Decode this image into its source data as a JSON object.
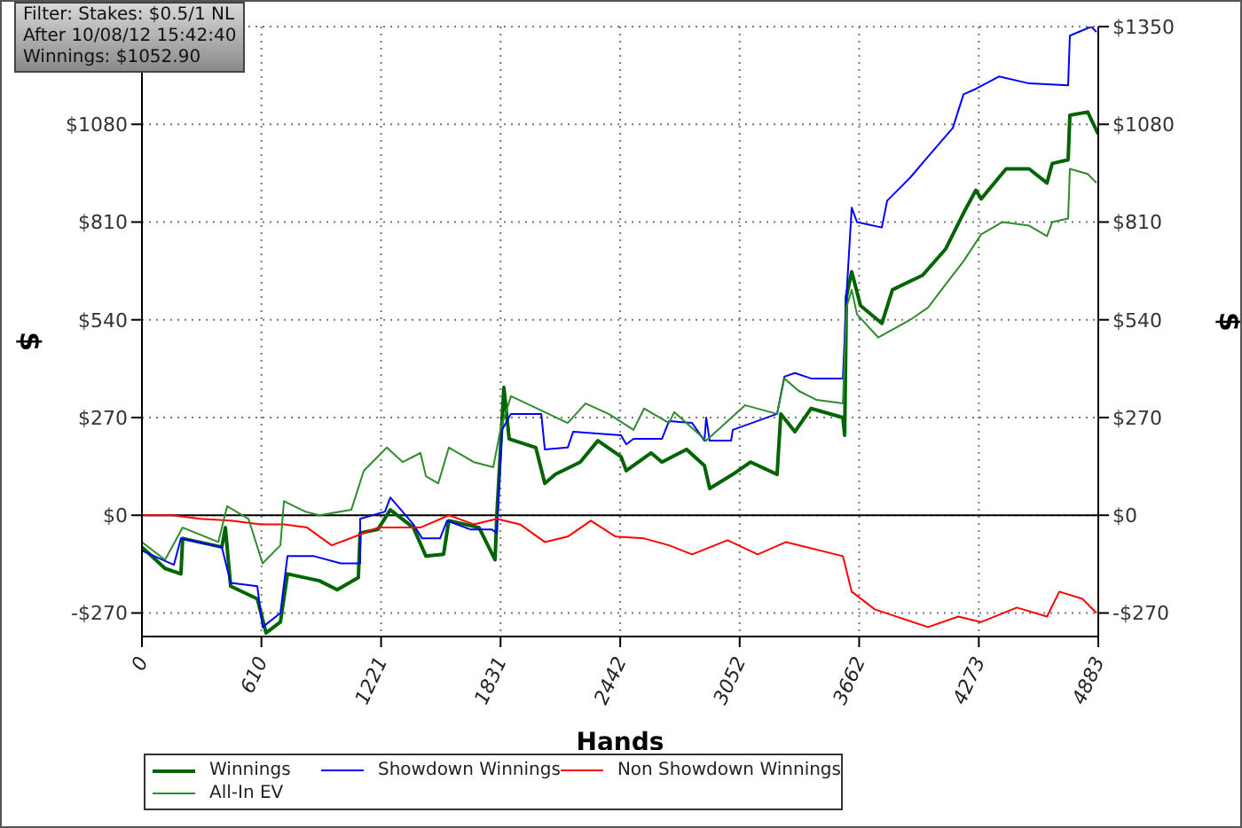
{
  "chart_data": {
    "type": "line",
    "xlabel": "Hands",
    "ylabel": "$",
    "y2label": "$",
    "annotations": [
      "Filter: Stakes: $0.5/1 NL",
      "After 10/08/12 15:42:40",
      "Winnings: $1052.90"
    ],
    "xlim": [
      0,
      4883
    ],
    "xticks": [
      0,
      610,
      1221,
      1831,
      2442,
      3052,
      3662,
      4273,
      4883
    ],
    "ylim": [
      -335,
      1350
    ],
    "yticks": [
      {
        "value": -270,
        "label": "-$270"
      },
      {
        "value": 0,
        "label": "$0"
      },
      {
        "value": 270,
        "label": "$270"
      },
      {
        "value": 540,
        "label": "$540"
      },
      {
        "value": 810,
        "label": "$810"
      },
      {
        "value": 1080,
        "label": "$1080"
      }
    ],
    "y2lim": [
      -335,
      1350
    ],
    "y2ticks": [
      {
        "value": -270,
        "label": "-$270"
      },
      {
        "value": 0,
        "label": "$0"
      },
      {
        "value": 270,
        "label": "$270"
      },
      {
        "value": 540,
        "label": "$540"
      },
      {
        "value": 810,
        "label": "$810"
      },
      {
        "value": 1080,
        "label": "$1080"
      },
      {
        "value": 1350,
        "label": "$1350"
      }
    ],
    "grid": true,
    "legend": "bottom",
    "marker": "none",
    "line_style": "solid",
    "ref_lines": [
      {
        "axis": "y",
        "value": 0,
        "color": "#000000"
      }
    ],
    "series": [
      {
        "name": "Winnings",
        "color": "#006400",
        "x": [
          0,
          118,
          199,
          208,
          408,
          426,
          453,
          589,
          634,
          707,
          743,
          906,
          997,
          1105,
          1114,
          1205,
          1268,
          1386,
          1450,
          1540,
          1567,
          1721,
          1803,
          1812,
          1848,
          1875,
          2011,
          2057,
          2111,
          2238,
          2328,
          2446,
          2473,
          2600,
          2655,
          2781,
          2872,
          2899,
          3017,
          3108,
          3243,
          3262,
          3334,
          3416,
          3579,
          3588,
          3597,
          3624,
          3669,
          3778,
          3832,
          3986,
          4104,
          4195,
          4258,
          4285,
          4412,
          4530,
          4621,
          4648,
          4729,
          4738,
          4829,
          4883
        ],
        "values": [
          -88,
          -147,
          -162,
          -64,
          -88,
          -34,
          -196,
          -231,
          -325,
          -295,
          -162,
          -181,
          -206,
          -172,
          -49,
          -39,
          15,
          -34,
          -113,
          -108,
          -15,
          -34,
          -123,
          0,
          353,
          211,
          187,
          88,
          113,
          147,
          206,
          162,
          123,
          172,
          147,
          182,
          137,
          74,
          113,
          147,
          113,
          280,
          231,
          295,
          270,
          221,
          604,
          673,
          579,
          530,
          623,
          663,
          736,
          835,
          898,
          874,
          957,
          957,
          918,
          972,
          982,
          1105,
          1114,
          1053
        ]
      },
      {
        "name": "Showdown Winnings",
        "color": "#0000ff",
        "x": [
          0,
          163,
          199,
          408,
          453,
          589,
          616,
          707,
          743,
          879,
          1015,
          1114,
          1114,
          1241,
          1268,
          1386,
          1431,
          1522,
          1558,
          1676,
          1785,
          1812,
          1839,
          1884,
          2039,
          2057,
          2174,
          2202,
          2446,
          2473,
          2510,
          2655,
          2691,
          2809,
          2872,
          2881,
          2899,
          3008,
          3017,
          3243,
          3280,
          3334,
          3416,
          3579,
          3597,
          3624,
          3651,
          3778,
          3805,
          3923,
          4014,
          4140,
          4195,
          4258,
          4376,
          4530,
          4729,
          4738,
          4847,
          4874
        ],
        "values": [
          -98,
          -137,
          -64,
          -88,
          -187,
          -196,
          -309,
          -270,
          -113,
          -113,
          -133,
          -133,
          -10,
          10,
          49,
          -25,
          -64,
          -64,
          -15,
          -39,
          -39,
          -49,
          236,
          280,
          280,
          182,
          187,
          231,
          221,
          196,
          211,
          211,
          260,
          255,
          206,
          270,
          206,
          206,
          236,
          280,
          383,
          393,
          378,
          378,
          604,
          850,
          810,
          795,
          869,
          933,
          991,
          1070,
          1163,
          1178,
          1212,
          1193,
          1188,
          1325,
          1350,
          1335
        ]
      },
      {
        "name": "Non Showdown Winnings",
        "color": "#ff0000",
        "x": [
          0,
          154,
          299,
          453,
          607,
          725,
          843,
          969,
          1087,
          1205,
          1422,
          1567,
          1694,
          1812,
          1930,
          2057,
          2174,
          2292,
          2419,
          2564,
          2691,
          2809,
          2990,
          3144,
          3289,
          3579,
          3624,
          3742,
          4014,
          4168,
          4285,
          4467,
          4621,
          4684,
          4802,
          4874
        ],
        "values": [
          0,
          0,
          -10,
          -15,
          -25,
          -25,
          -34,
          -83,
          -59,
          -34,
          -34,
          0,
          -25,
          -10,
          -25,
          -74,
          -59,
          -15,
          -59,
          -64,
          -83,
          -108,
          -69,
          -108,
          -74,
          -113,
          -211,
          -260,
          -309,
          -280,
          -295,
          -255,
          -280,
          -211,
          -231,
          -270
        ]
      },
      {
        "name": "All-In EV",
        "color": "#2e8b2e",
        "x": [
          0,
          118,
          208,
          390,
          435,
          544,
          616,
          707,
          725,
          834,
          906,
          1069,
          1133,
          1250,
          1332,
          1422,
          1450,
          1513,
          1567,
          1694,
          1794,
          1830,
          1884,
          2057,
          2174,
          2265,
          2383,
          2510,
          2564,
          2691,
          2718,
          2881,
          3080,
          3243,
          3280,
          3352,
          3443,
          3579,
          3597,
          3624,
          3651,
          3760,
          3923,
          4014,
          4104,
          4195,
          4285,
          4394,
          4530,
          4621,
          4648,
          4729,
          4738,
          4829,
          4874
        ],
        "values": [
          -74,
          -123,
          -34,
          -74,
          25,
          -10,
          -133,
          -83,
          39,
          10,
          0,
          15,
          123,
          187,
          147,
          172,
          108,
          88,
          187,
          147,
          133,
          236,
          329,
          285,
          255,
          309,
          280,
          236,
          295,
          255,
          285,
          206,
          304,
          280,
          378,
          344,
          319,
          309,
          574,
          623,
          555,
          491,
          540,
          574,
          638,
          702,
          776,
          810,
          800,
          771,
          810,
          820,
          957,
          943,
          918
        ]
      }
    ]
  }
}
